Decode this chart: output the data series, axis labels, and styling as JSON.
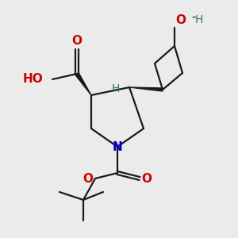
{
  "background_color": "#ebebeb",
  "bond_color": "#1a1a1a",
  "oxygen_color": "#cc0000",
  "nitrogen_color": "#0000cc",
  "hydrogen_color": "#3a7070",
  "line_width": 1.6,
  "figsize": [
    3.0,
    3.0
  ],
  "dpi": 100,
  "OH_label": "O-H",
  "H_label": "H",
  "O_label": "O",
  "N_label": "N"
}
